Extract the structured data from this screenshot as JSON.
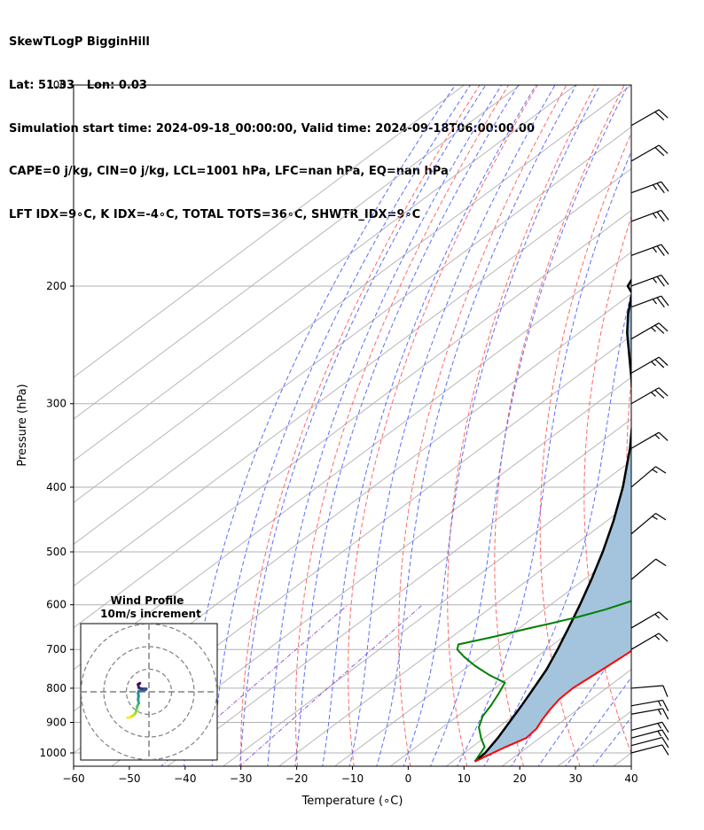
{
  "header": {
    "line1": "SkewTLogP BigginHill",
    "line2": "Lat: 51.33   Lon: 0.03",
    "line3": "Simulation start time: 2024-09-18_00:00:00, Valid time: 2024-09-18T06:00:00.00",
    "line4": "CAPE=0 j/kg, CIN=0 j/kg, LCL=1001 hPa, LFC=nan hPa, EQ=nan hPa",
    "line5": "LFT IDX=9∘C, K IDX=-4∘C, TOTAL TOTS=36∘C, SHWTR_IDX=9∘C"
  },
  "chart_data": {
    "type": "line",
    "subtype": "skew-t log-p",
    "xlabel": "Temperature (∘C)",
    "ylabel": "Pressure (hPa)",
    "xlim": [
      -60,
      40
    ],
    "ylim": [
      1050,
      100
    ],
    "y_scale": "log",
    "x_ticks": [
      -60,
      -50,
      -40,
      -30,
      -20,
      -10,
      0,
      10,
      20,
      30,
      40
    ],
    "x_tick_labels": [
      "−60",
      "−50",
      "−40",
      "−30",
      "−20",
      "−10",
      "0",
      "10",
      "20",
      "30",
      "40"
    ],
    "y_ticks": [
      1000,
      900,
      800,
      700,
      600,
      500,
      400,
      300,
      200,
      100
    ],
    "y_tick_labels": [
      "1000",
      "900",
      "800",
      "700",
      "600",
      "500",
      "400",
      "300",
      "200",
      "100"
    ],
    "grid": true,
    "colors": {
      "temperature": "#ff0000",
      "dewpoint": "#008000",
      "parcel": "#000000",
      "cape_fill": "#a3c4dc",
      "dry_adiabats": "#ff6666",
      "moist_adiabats": "#5b6bff",
      "mixing_ratio": "#9b59d0",
      "isotherms": "#b0b0b0"
    },
    "series": [
      {
        "key": "temperature",
        "points": [
          [
            14,
            1030
          ],
          [
            16,
            980
          ],
          [
            17.6,
            950
          ],
          [
            17.2,
            920
          ],
          [
            16,
            890
          ],
          [
            15,
            860
          ],
          [
            14.2,
            830
          ],
          [
            14,
            800
          ],
          [
            14.5,
            770
          ],
          [
            15,
            740
          ],
          [
            15.5,
            710
          ],
          [
            15.7,
            680
          ],
          [
            15.5,
            650
          ],
          [
            14.8,
            620
          ],
          [
            13.5,
            590
          ],
          [
            11.5,
            560
          ],
          [
            9.5,
            530
          ],
          [
            8,
            500
          ],
          [
            7.2,
            470
          ],
          [
            6.5,
            440
          ],
          [
            5.7,
            410
          ],
          [
            4.5,
            380
          ],
          [
            3,
            350
          ],
          [
            1.8,
            320
          ],
          [
            0.5,
            290
          ],
          [
            -2,
            260
          ],
          [
            -4.5,
            235
          ],
          [
            -7.5,
            210
          ],
          [
            -7.8,
            200
          ],
          [
            -7.9,
            190
          ],
          [
            -6.2,
            178
          ],
          [
            -6.2,
            168
          ],
          [
            -4.8,
            160
          ],
          [
            -2.5,
            150
          ],
          [
            0.5,
            140
          ],
          [
            3.5,
            130
          ],
          [
            5.5,
            122
          ],
          [
            8,
            115
          ],
          [
            10.5,
            108
          ],
          [
            12,
            103
          ],
          [
            12.5,
            100
          ]
        ]
      },
      {
        "key": "dewpoint",
        "points": [
          [
            14,
            1030
          ],
          [
            12.3,
            980
          ],
          [
            9.5,
            950
          ],
          [
            6.5,
            915
          ],
          [
            4.5,
            880
          ],
          [
            3.5,
            850
          ],
          [
            2,
            815
          ],
          [
            0.5,
            785
          ],
          [
            -4,
            765
          ],
          [
            -9,
            740
          ],
          [
            -13,
            718
          ],
          [
            -16,
            700
          ],
          [
            -17,
            688
          ],
          [
            -12.5,
            670
          ],
          [
            -8,
            650
          ],
          [
            -5.5,
            640
          ],
          [
            -2,
            625
          ],
          [
            1,
            610
          ],
          [
            4,
            590
          ],
          [
            6,
            565
          ],
          [
            6.5,
            540
          ],
          [
            6.2,
            510
          ],
          [
            5.5,
            470
          ],
          [
            4.5,
            440
          ],
          [
            3,
            410
          ],
          [
            1.2,
            380
          ],
          [
            -1,
            350
          ],
          [
            -3.5,
            325
          ],
          [
            -6.5,
            300
          ],
          [
            -8,
            280
          ],
          [
            -8.8,
            260
          ],
          [
            -9,
            240
          ],
          [
            -9.5,
            225
          ],
          [
            -10,
            212
          ],
          [
            -11,
            198
          ],
          [
            -12,
            185
          ],
          [
            -12.2,
            175
          ],
          [
            -12.5,
            165
          ],
          [
            -12.5,
            155
          ],
          [
            -12.8,
            145
          ],
          [
            -13.2,
            135
          ],
          [
            -13,
            128
          ],
          [
            -13,
            121
          ],
          [
            -13,
            115
          ],
          [
            -12.5,
            108
          ],
          [
            -11.5,
            103
          ],
          [
            -11,
            100
          ]
        ]
      },
      {
        "key": "parcel",
        "points": [
          [
            14,
            1030
          ],
          [
            13.8,
            1000
          ],
          [
            12.5,
            950
          ],
          [
            10.8,
            900
          ],
          [
            9,
            850
          ],
          [
            7,
            800
          ],
          [
            4.8,
            750
          ],
          [
            2,
            700
          ],
          [
            -1.2,
            650
          ],
          [
            -4.7,
            600
          ],
          [
            -8.7,
            550
          ],
          [
            -13.3,
            500
          ],
          [
            -18.7,
            450
          ],
          [
            -25.2,
            400
          ],
          [
            -33.2,
            350
          ],
          [
            -38,
            325
          ],
          [
            -43.4,
            300
          ],
          [
            -49.7,
            275
          ],
          [
            -56.8,
            250
          ],
          [
            -61.4,
            235
          ],
          [
            -65.8,
            220
          ],
          [
            -70,
            205
          ],
          [
            -72.5,
            200
          ],
          [
            -75.5,
            185
          ],
          [
            -78,
            170
          ],
          [
            -80.5,
            160
          ],
          [
            -83.5,
            150
          ],
          [
            -87,
            138
          ],
          [
            -90,
            127
          ],
          [
            -93.5,
            115
          ],
          [
            -96,
            106
          ],
          [
            -97.5,
            100
          ]
        ]
      }
    ],
    "wind_profile": {
      "title_line1": "Wind Profile",
      "title_line2": "10m/s increment",
      "hodograph_uv": [
        [
          -9.5,
          -11.5
        ],
        [
          -8.5,
          -11.3
        ],
        [
          -7.5,
          -10.8
        ],
        [
          -6.2,
          -9.8
        ],
        [
          -5.5,
          -8.2
        ],
        [
          -5.2,
          -6.5
        ],
        [
          -4.5,
          -5
        ],
        [
          -4.8,
          -3.5
        ],
        [
          -4.6,
          -1.8
        ],
        [
          -4.8,
          -0.5
        ],
        [
          -4.5,
          0.3
        ],
        [
          -3,
          0.6
        ],
        [
          -1.5,
          0.9
        ],
        [
          -1.2,
          1.3
        ],
        [
          -3,
          1.3
        ],
        [
          -4.5,
          1.8
        ],
        [
          -4.8,
          3.3
        ],
        [
          -4,
          3.8
        ]
      ]
    },
    "wind_barbs": [
      {
        "p": 1000,
        "u": -4.6,
        "v": -1.2
      },
      {
        "p": 975,
        "u": -5.7,
        "v": -1.5
      },
      {
        "p": 950,
        "u": -6.8,
        "v": -1.8
      },
      {
        "p": 925,
        "u": -6.8,
        "v": -1.8
      },
      {
        "p": 875,
        "u": -6.7,
        "v": -1.2
      },
      {
        "p": 850,
        "u": -7.3,
        "v": -1.3
      },
      {
        "p": 800,
        "u": -6.1,
        "v": -0.5
      },
      {
        "p": 700,
        "u": -6.5,
        "v": -3.8
      },
      {
        "p": 650,
        "u": -6.5,
        "v": -3.8
      },
      {
        "p": 550,
        "u": -4.8,
        "v": -4
      },
      {
        "p": 470,
        "u": -5.8,
        "v": -4.9
      },
      {
        "p": 400,
        "u": -5.8,
        "v": -4.9
      },
      {
        "p": 350,
        "u": -6.9,
        "v": -4
      },
      {
        "p": 300,
        "u": -10.4,
        "v": -6
      },
      {
        "p": 270,
        "u": -11.6,
        "v": -6.7
      },
      {
        "p": 240,
        "u": -11.6,
        "v": -6.7
      },
      {
        "p": 215,
        "u": -12.5,
        "v": -4.6
      },
      {
        "p": 200,
        "u": -12.5,
        "v": -4.6
      },
      {
        "p": 180,
        "u": -12.5,
        "v": -4.6
      },
      {
        "p": 160,
        "u": -12.5,
        "v": -4.6
      },
      {
        "p": 145,
        "u": -11.4,
        "v": -4.2
      },
      {
        "p": 130,
        "u": -8.7,
        "v": -5
      },
      {
        "p": 115,
        "u": -8.7,
        "v": -5
      }
    ]
  }
}
